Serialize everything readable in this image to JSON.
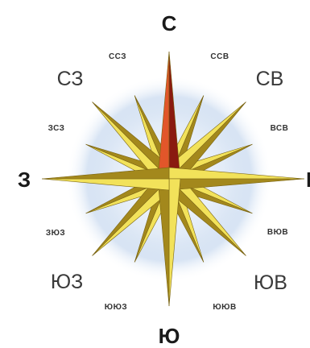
{
  "labels": {
    "north": "С",
    "north_northeast": "ССВ",
    "northeast": "СВ",
    "east_northeast": "ВСВ",
    "east": "В",
    "east_southeast": "ВЮВ",
    "southeast": "ЮВ",
    "south_southeast": "ЮЮВ",
    "south": "Ю",
    "south_southwest": "ЮЮЗ",
    "southwest": "ЮЗ",
    "west_southwest": "ЗЮЗ",
    "west": "З",
    "west_northwest": "ЗСЗ",
    "northwest": "СЗ",
    "north_northwest": "ССЗ"
  },
  "colors": {
    "north_point_light": "#e2562a",
    "north_point_dark": "#8a1a10",
    "point_light": "#f2e25a",
    "point_dark": "#a3881c",
    "glow": "#a9c3e6"
  }
}
